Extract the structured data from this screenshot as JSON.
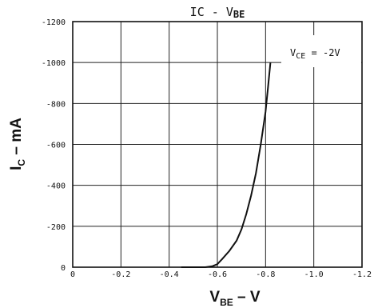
{
  "chart_data": {
    "type": "line",
    "title_parts": [
      "IC",
      " - ",
      "V",
      "BE"
    ],
    "xlabel_parts": [
      "V",
      "BE",
      " – V"
    ],
    "ylabel_parts": [
      "I",
      "C",
      " – mA"
    ],
    "x_ticks": [
      {
        "value": 0,
        "label": "0"
      },
      {
        "value": -0.2,
        "label": "-0.2"
      },
      {
        "value": -0.4,
        "label": "-0.4"
      },
      {
        "value": -0.6,
        "label": "-0.6"
      },
      {
        "value": -0.8,
        "label": "-0.8"
      },
      {
        "value": -1.0,
        "label": "-1.0"
      },
      {
        "value": -1.2,
        "label": "-1.2"
      }
    ],
    "y_ticks": [
      {
        "value": 0,
        "label": "0"
      },
      {
        "value": -200,
        "label": "-200"
      },
      {
        "value": -400,
        "label": "-400"
      },
      {
        "value": -600,
        "label": "-600"
      },
      {
        "value": -800,
        "label": "-800"
      },
      {
        "value": -1000,
        "label": "-1000"
      },
      {
        "value": -1200,
        "label": "-1200"
      }
    ],
    "xlim": [
      0,
      -1.2
    ],
    "ylim": [
      0,
      -1200
    ],
    "grid": true,
    "series": [
      {
        "annotation_parts": [
          "V",
          "CE",
          " = ",
          "-2V"
        ],
        "x": [
          -0.45,
          -0.5,
          -0.55,
          -0.58,
          -0.6,
          -0.62,
          -0.65,
          -0.68,
          -0.7,
          -0.72,
          -0.74,
          -0.76,
          -0.78,
          -0.8,
          -0.81,
          -0.82
        ],
        "y": [
          0,
          0,
          0,
          -5,
          -15,
          -40,
          -80,
          -130,
          -185,
          -260,
          -350,
          -460,
          -600,
          -760,
          -880,
          -1000
        ]
      }
    ],
    "colors": {
      "line": "#111111",
      "grid": "#222222",
      "background": "#ffffff"
    }
  }
}
